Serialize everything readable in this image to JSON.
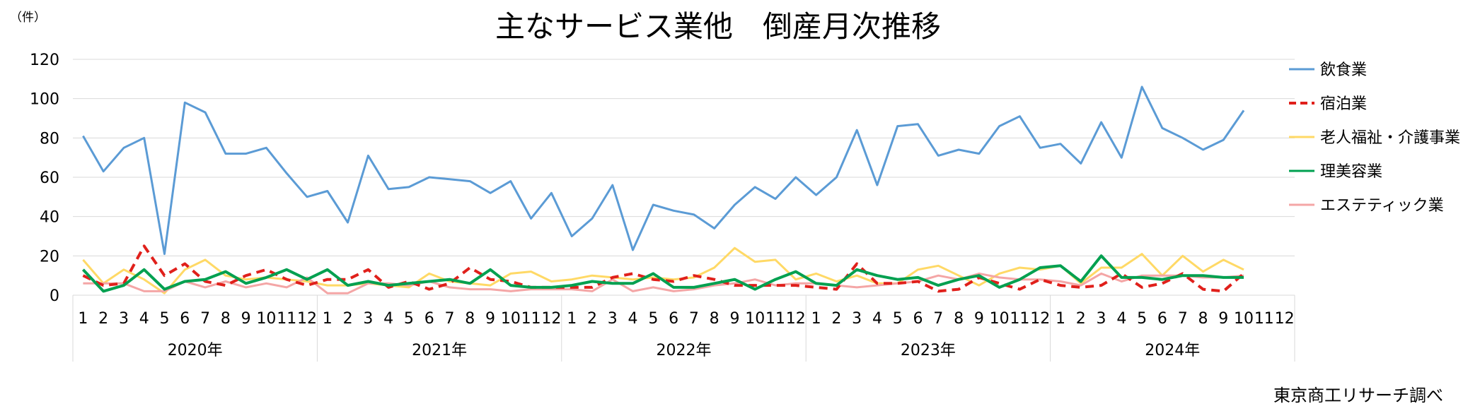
{
  "chart_data": {
    "type": "line",
    "title": "主なサービス業他　倒産月次推移",
    "unit_label": "（件）",
    "source_note": "東京商工リサーチ調べ",
    "ylim": [
      0,
      120
    ],
    "y_ticks": [
      0,
      20,
      40,
      60,
      80,
      100,
      120
    ],
    "grid": "horizontal",
    "legend_position": "right",
    "years": [
      "2020年",
      "2021年",
      "2022年",
      "2023年",
      "2024年"
    ],
    "months": [
      "1",
      "2",
      "3",
      "4",
      "5",
      "6",
      "7",
      "8",
      "9",
      "10",
      "11",
      "12"
    ],
    "series": [
      {
        "name": "飲食業",
        "color": "#5b9bd5",
        "style": "solid",
        "values": [
          81,
          63,
          75,
          80,
          21,
          98,
          93,
          72,
          72,
          75,
          62,
          50,
          53,
          37,
          71,
          54,
          55,
          60,
          59,
          58,
          52,
          58,
          39,
          52,
          30,
          39,
          56,
          23,
          46,
          43,
          41,
          34,
          46,
          55,
          49,
          60,
          51,
          60,
          84,
          56,
          86,
          87,
          71,
          74,
          72,
          86,
          91,
          75,
          77,
          67,
          88,
          70,
          106,
          85,
          80,
          74,
          79,
          94,
          null,
          null
        ]
      },
      {
        "name": "宿泊業",
        "color": "#e0201b",
        "style": "dashed",
        "values": [
          10,
          5,
          6,
          25,
          10,
          16,
          7,
          5,
          10,
          13,
          8,
          5,
          8,
          8,
          13,
          4,
          7,
          3,
          6,
          14,
          8,
          7,
          4,
          4,
          4,
          4,
          9,
          11,
          8,
          7,
          10,
          8,
          5,
          5,
          5,
          5,
          4,
          3,
          16,
          6,
          6,
          7,
          2,
          3,
          9,
          6,
          3,
          8,
          5,
          4,
          5,
          11,
          4,
          6,
          11,
          3,
          2,
          11,
          null,
          null
        ]
      },
      {
        "name": "老人福祉・介護事業",
        "color": "#ffd966",
        "style": "solid",
        "values": [
          18,
          6,
          13,
          8,
          1,
          13,
          18,
          10,
          8,
          9,
          8,
          7,
          5,
          5,
          6,
          5,
          4,
          11,
          7,
          6,
          5,
          11,
          12,
          7,
          8,
          10,
          9,
          8,
          9,
          8,
          9,
          14,
          24,
          17,
          18,
          8,
          11,
          7,
          10,
          6,
          6,
          13,
          15,
          10,
          5,
          11,
          14,
          13,
          15,
          6,
          14,
          14,
          21,
          10,
          20,
          12,
          18,
          13,
          null,
          null
        ]
      },
      {
        "name": "理美容業",
        "color": "#00a050",
        "style": "solid",
        "values": [
          13,
          2,
          5,
          13,
          3,
          7,
          8,
          12,
          6,
          9,
          13,
          8,
          13,
          5,
          7,
          5,
          6,
          7,
          8,
          6,
          13,
          5,
          4,
          4,
          5,
          7,
          6,
          6,
          11,
          4,
          4,
          6,
          8,
          3,
          8,
          12,
          6,
          5,
          13,
          10,
          8,
          9,
          5,
          8,
          10,
          4,
          8,
          14,
          15,
          7,
          20,
          9,
          9,
          8,
          10,
          10,
          9,
          9,
          null,
          null
        ]
      },
      {
        "name": "エステティック業",
        "color": "#f4a6a6",
        "style": "solid",
        "values": [
          6,
          6,
          6,
          2,
          2,
          7,
          4,
          7,
          4,
          6,
          4,
          9,
          1,
          1,
          6,
          6,
          5,
          7,
          4,
          3,
          3,
          2,
          3,
          3,
          3,
          2,
          8,
          2,
          4,
          2,
          3,
          5,
          6,
          8,
          5,
          6,
          6,
          5,
          4,
          5,
          6,
          7,
          10,
          8,
          11,
          9,
          8,
          8,
          7,
          5,
          11,
          7,
          10,
          10,
          10,
          9,
          9,
          10,
          null,
          null
        ]
      }
    ]
  }
}
